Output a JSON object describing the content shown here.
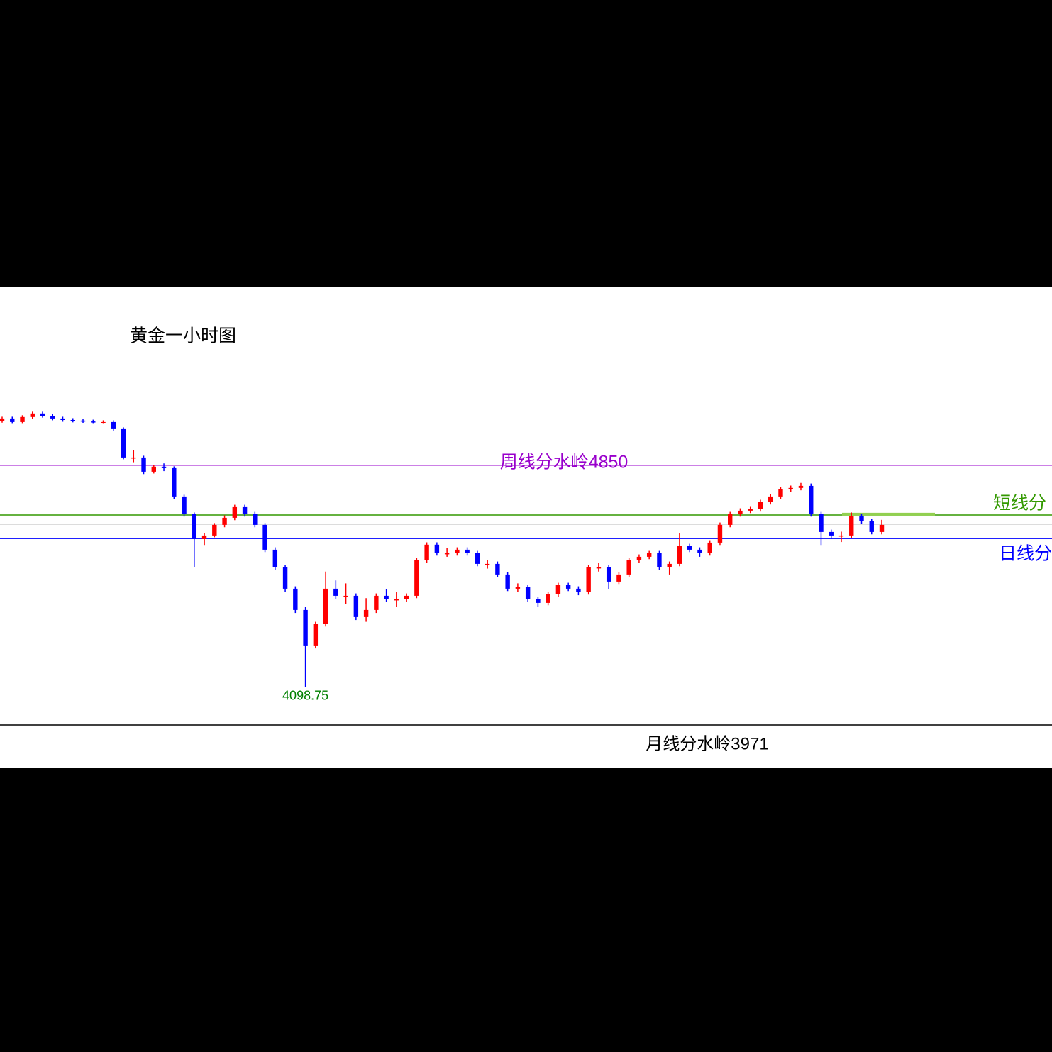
{
  "chart_data": {
    "type": "candlestick",
    "title": "黄金一小时图",
    "up_color": "#ff0000",
    "down_color": "#0000ff",
    "ylim": [
      3971,
      5454.2
    ],
    "open": [
      5000,
      5008,
      4996,
      5013,
      5025,
      5017,
      5008,
      5003,
      5001,
      4998,
      4996,
      4996,
      4972,
      4876,
      4876,
      4828,
      4845,
      4840,
      4744,
      4684,
      4600,
      4612,
      4648,
      4672,
      4708,
      4684,
      4648,
      4564,
      4504,
      4432,
      4360,
      4240,
      4312,
      4432,
      4408,
      4408,
      4336,
      4360,
      4408,
      4396,
      4396,
      4408,
      4528,
      4581,
      4552,
      4552,
      4564,
      4552,
      4516,
      4516,
      4480,
      4432,
      4437,
      4396,
      4384,
      4413,
      4444,
      4432,
      4420,
      4504,
      4504,
      4456,
      4480,
      4528,
      4540,
      4552,
      4504,
      4516,
      4576,
      4564,
      4552,
      4588,
      4648,
      4684,
      4696,
      4701,
      4725,
      4744,
      4768,
      4773,
      4780,
      4684,
      4624,
      4612,
      4612,
      4677,
      4660,
      4624
    ],
    "high": [
      5014,
      5014,
      5019,
      5031,
      5031,
      5023,
      5014,
      5009,
      5007,
      5004,
      5002,
      5002,
      4978,
      4900,
      4882,
      4851,
      4856,
      4846,
      4750,
      4690,
      4620,
      4654,
      4680,
      4716,
      4716,
      4692,
      4654,
      4572,
      4512,
      4440,
      4370,
      4320,
      4490,
      4460,
      4450,
      4416,
      4400,
      4416,
      4430,
      4420,
      4416,
      4536,
      4589,
      4589,
      4570,
      4572,
      4572,
      4560,
      4530,
      4524,
      4488,
      4450,
      4445,
      4404,
      4421,
      4452,
      4452,
      4440,
      4512,
      4520,
      4512,
      4488,
      4536,
      4548,
      4560,
      4560,
      4524,
      4620,
      4584,
      4572,
      4596,
      4656,
      4692,
      4704,
      4709,
      4733,
      4752,
      4776,
      4781,
      4790,
      4788,
      4692,
      4632,
      4625,
      4690,
      4685,
      4668,
      4665
    ],
    "low": [
      4994,
      4990,
      4990,
      5007,
      5011,
      5002,
      4997,
      4995,
      4992,
      4990,
      4990,
      4966,
      4870,
      4860,
      4820,
      4822,
      4830,
      4736,
      4676,
      4504,
      4580,
      4606,
      4640,
      4664,
      4676,
      4640,
      4556,
      4496,
      4420,
      4350,
      4098.75,
      4230,
      4304,
      4396,
      4380,
      4326,
      4320,
      4350,
      4388,
      4370,
      4388,
      4400,
      4520,
      4544,
      4540,
      4544,
      4544,
      4508,
      4500,
      4472,
      4424,
      4420,
      4388,
      4370,
      4376,
      4405,
      4424,
      4410,
      4412,
      4490,
      4430,
      4448,
      4472,
      4520,
      4532,
      4496,
      4480,
      4508,
      4556,
      4540,
      4544,
      4580,
      4640,
      4676,
      4688,
      4693,
      4717,
      4736,
      4760,
      4765,
      4676,
      4580,
      4600,
      4590,
      4604,
      4652,
      4616,
      4616
    ],
    "close": [
      5008,
      4996,
      5013,
      5025,
      5017,
      5008,
      5003,
      5001,
      4998,
      4996,
      4996,
      4972,
      4876,
      4876,
      4828,
      4845,
      4840,
      4744,
      4684,
      4600,
      4612,
      4648,
      4672,
      4708,
      4684,
      4648,
      4564,
      4504,
      4432,
      4360,
      4240,
      4312,
      4432,
      4408,
      4408,
      4336,
      4360,
      4408,
      4396,
      4396,
      4408,
      4528,
      4581,
      4552,
      4552,
      4564,
      4552,
      4516,
      4516,
      4480,
      4432,
      4437,
      4396,
      4384,
      4413,
      4444,
      4432,
      4420,
      4504,
      4504,
      4456,
      4480,
      4528,
      4540,
      4552,
      4504,
      4516,
      4576,
      4564,
      4552,
      4588,
      4648,
      4684,
      4696,
      4701,
      4725,
      4744,
      4768,
      4773,
      4780,
      4684,
      4624,
      4612,
      4612,
      4677,
      4660,
      4624,
      4648
    ],
    "lines": [
      {
        "value": 4850,
        "label": "周线分水岭4850",
        "color": "#9900cc"
      },
      {
        "value": 4681.4,
        "label": "短线分",
        "color": "#339900"
      },
      {
        "value": 4650,
        "color": "#c8c8c8"
      },
      {
        "value": 4602,
        "label": "日线分",
        "color": "#0000ff"
      },
      {
        "value": 4684,
        "color": "#92d050"
      },
      {
        "value": 3971,
        "label": "月线分水岭3971",
        "color": "#000000"
      }
    ]
  }
}
